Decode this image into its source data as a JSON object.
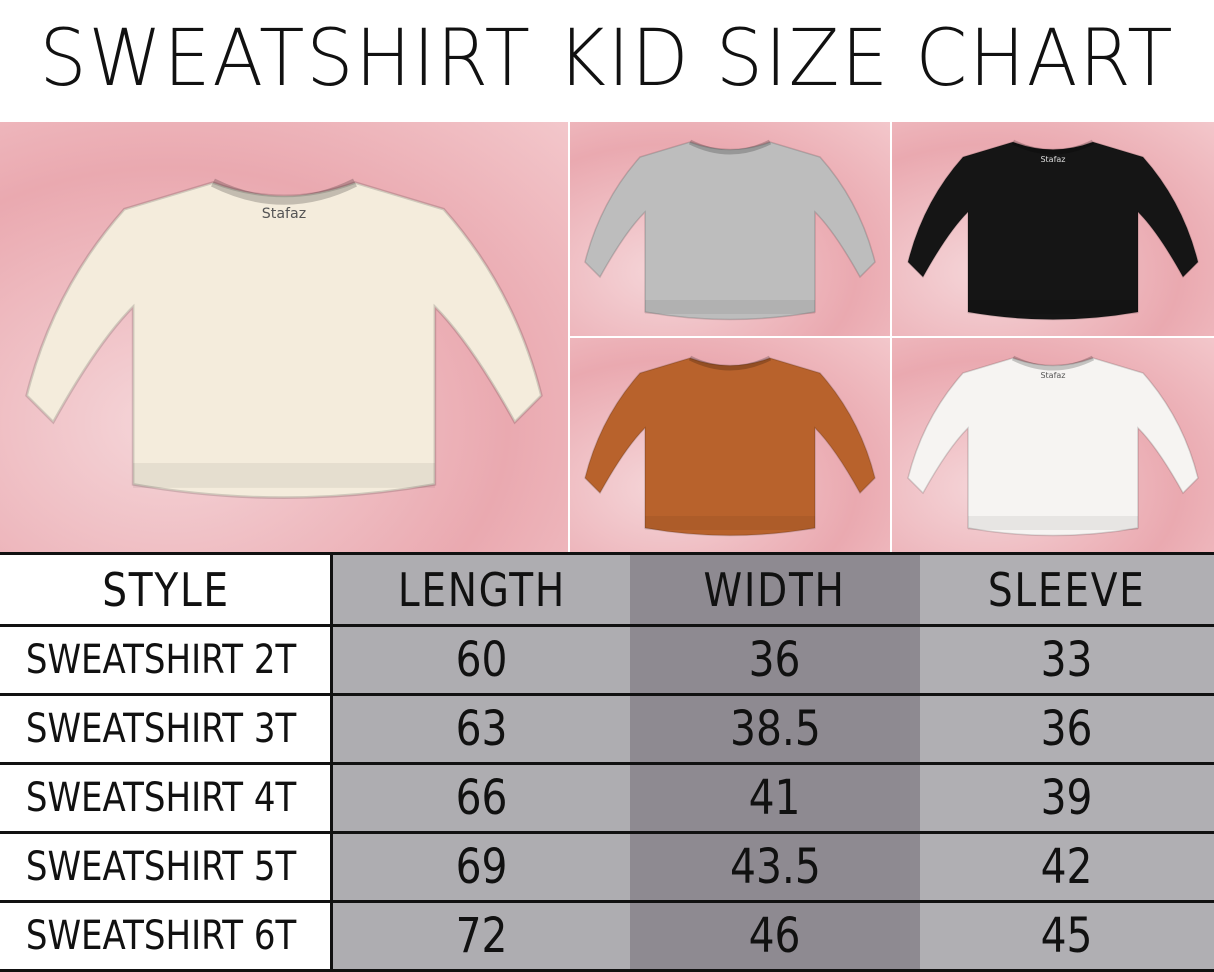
{
  "title": "SWEATSHIRT KID SIZE CHART",
  "photos": [
    {
      "color": "#f4ecdc",
      "label": "Stafaz"
    },
    {
      "color": "#bdbdbd",
      "label": ""
    },
    {
      "color": "#151515",
      "label": "Stafaz"
    },
    {
      "color": "#b8622c",
      "label": ""
    },
    {
      "color": "#f6f4f2",
      "label": "Stafaz"
    }
  ],
  "table": {
    "headers": [
      "STYLE",
      "LENGTH",
      "WIDTH",
      "SLEEVE"
    ],
    "rows": [
      [
        "SWEATSHIRT 2T",
        "60",
        "36",
        "33"
      ],
      [
        "SWEATSHIRT 3T",
        "63",
        "38.5",
        "36"
      ],
      [
        "SWEATSHIRT 4T",
        "66",
        "41",
        "39"
      ],
      [
        "SWEATSHIRT 5T",
        "69",
        "43.5",
        "42"
      ],
      [
        "SWEATSHIRT 6T",
        "72",
        "46",
        "45"
      ]
    ]
  }
}
